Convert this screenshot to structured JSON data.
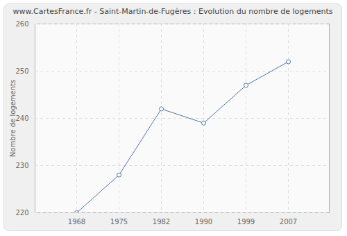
{
  "chart_data": {
    "type": "line",
    "title": "www.CartesFrance.fr - Saint-Martin-de-Fugères : Evolution du nombre de logements",
    "y_label": "Nombre de logements",
    "categories": [
      "1968",
      "1975",
      "1982",
      "1990",
      "1999",
      "2007"
    ],
    "values": [
      220,
      228,
      242,
      239,
      247,
      252
    ],
    "color": "#4f76a6",
    "marker": "circle",
    "ylim": [
      220,
      260
    ],
    "yticks": [
      220,
      230,
      240,
      250,
      260
    ],
    "grid": true
  }
}
